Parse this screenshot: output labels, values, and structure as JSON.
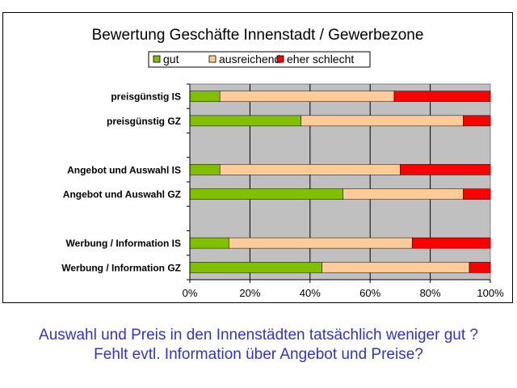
{
  "chart_data": {
    "type": "bar",
    "stacked": true,
    "orientation": "horizontal",
    "title": "Bewertung Geschäfte Innenstadt / Gewerbezone",
    "categories": [
      "preisgünstig  IS",
      "preisgünstig  GZ",
      "",
      "Angebot und Auswahl IS",
      "Angebot und Auswahl GZ",
      "",
      "Werbung / Information IS",
      "Werbung / Information GZ"
    ],
    "series": [
      {
        "name": "gut",
        "color": "#80c000",
        "values": [
          0.1,
          0.37,
          null,
          0.1,
          0.51,
          null,
          0.13,
          0.44
        ]
      },
      {
        "name": "ausreichend",
        "color": "#ffcc99",
        "values": [
          0.58,
          0.54,
          null,
          0.6,
          0.4,
          null,
          0.61,
          0.49
        ]
      },
      {
        "name": "eher schlecht",
        "color": "#ff0000",
        "values": [
          0.32,
          0.09,
          null,
          0.3,
          0.09,
          null,
          0.26,
          0.07
        ]
      }
    ],
    "xlim": [
      0,
      1
    ],
    "xticks": [
      "0%",
      "20%",
      "40%",
      "60%",
      "80%",
      "100%"
    ],
    "grid": true,
    "legend_position": "top",
    "plot_background": "#c0c0c0"
  },
  "caption": {
    "line1": "Auswahl und Preis in den Innenstädten tatsächlich weniger gut ?",
    "line2": "Fehlt evtl. Information über Angebot und Preise?"
  }
}
